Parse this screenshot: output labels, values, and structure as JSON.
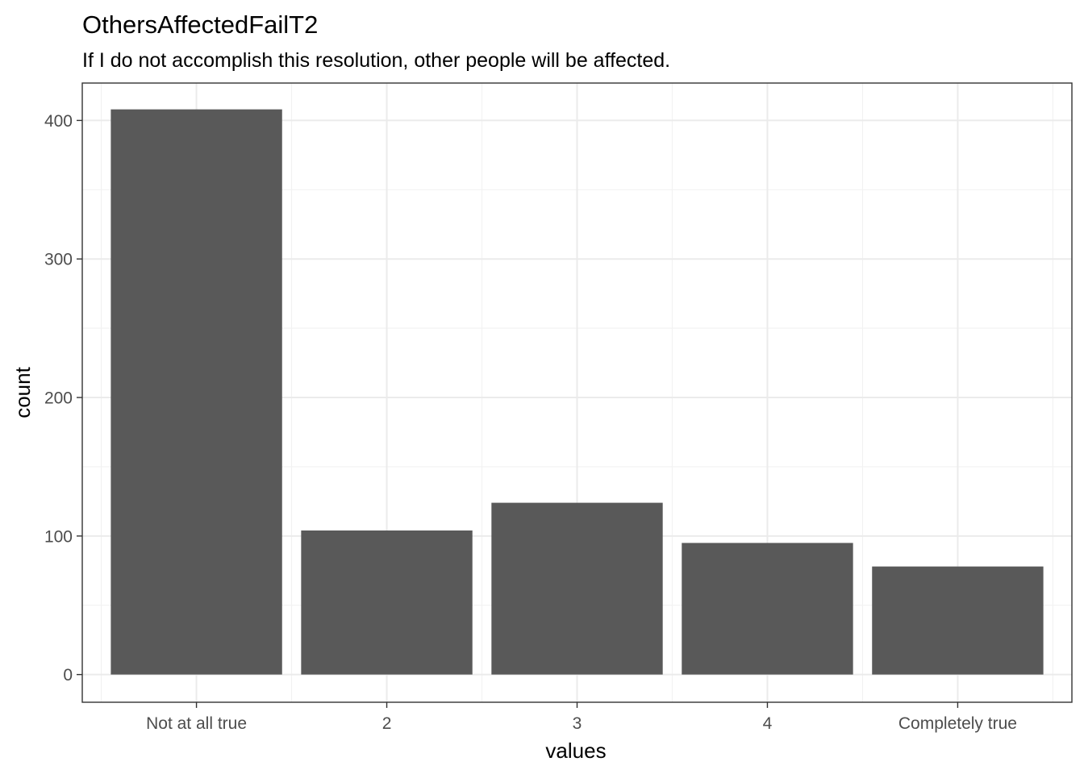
{
  "chart_data": {
    "type": "bar",
    "title": "OthersAffectedFailT2",
    "subtitle": "If I do not accomplish this resolution, other people will be affected.",
    "xlabel": "values",
    "ylabel": "count",
    "categories": [
      "Not at all true",
      "2",
      "3",
      "4",
      "Completely true"
    ],
    "values": [
      408,
      104,
      124,
      95,
      78
    ],
    "ylim": [
      -20,
      427
    ],
    "yticks": [
      0,
      100,
      200,
      300,
      400
    ],
    "bar_color": "#595959",
    "grid": true,
    "legend": "none"
  }
}
